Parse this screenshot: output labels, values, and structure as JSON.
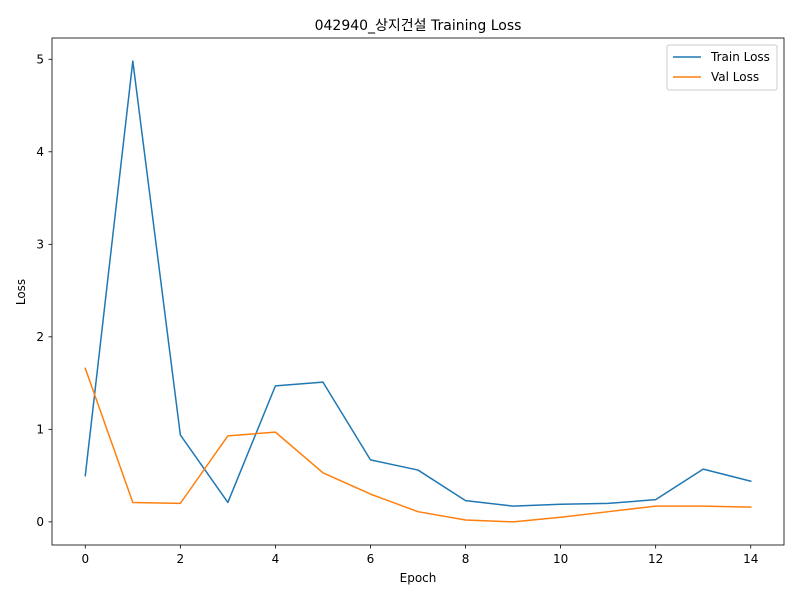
{
  "chart_data": {
    "type": "line",
    "title": "042940_상지건설 Training Loss",
    "xlabel": "Epoch",
    "ylabel": "Loss",
    "xlim": [
      -0.7,
      14.7
    ],
    "ylim": [
      -0.25,
      5.23
    ],
    "xticks": [
      0,
      2,
      4,
      6,
      8,
      10,
      12,
      14
    ],
    "yticks": [
      0,
      1,
      2,
      3,
      4,
      5
    ],
    "grid": false,
    "legend_position": "top-right",
    "x": [
      0,
      1,
      2,
      3,
      4,
      5,
      6,
      7,
      8,
      9,
      10,
      11,
      12,
      13,
      14
    ],
    "series": [
      {
        "name": "Train Loss",
        "color": "#1f77b4",
        "values": [
          0.5,
          4.98,
          0.94,
          0.21,
          1.47,
          1.51,
          0.67,
          0.56,
          0.23,
          0.17,
          0.19,
          0.2,
          0.24,
          0.57,
          0.44
        ]
      },
      {
        "name": "Val Loss",
        "color": "#ff7f0e",
        "values": [
          1.66,
          0.21,
          0.2,
          0.93,
          0.97,
          0.53,
          0.3,
          0.11,
          0.02,
          0.0,
          0.05,
          0.11,
          0.17,
          0.17,
          0.16
        ]
      }
    ]
  }
}
